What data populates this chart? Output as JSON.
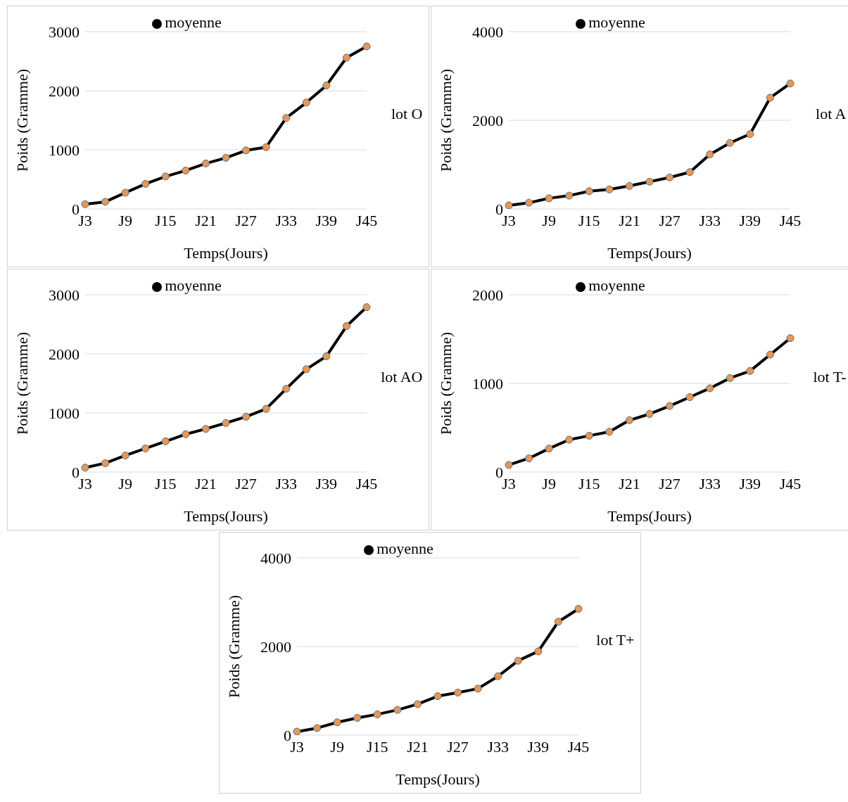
{
  "chart_data": [
    {
      "type": "line",
      "categories": [
        "J3",
        null,
        "J9",
        null,
        "J15",
        null,
        "J21",
        null,
        "J27",
        null,
        "J33",
        null,
        "J39",
        null,
        "J45"
      ],
      "series": [
        {
          "name": "moyenne",
          "color": "#000000",
          "values": [
            80,
            120,
            275,
            425,
            550,
            650,
            770,
            865,
            990,
            1045,
            1540,
            1800,
            2090,
            2560,
            2750
          ]
        }
      ],
      "ylim": [
        0,
        3000
      ],
      "yticks": [
        0,
        1000,
        2000,
        3000
      ],
      "xlabel": "Temps(Jours)",
      "ylabel": "Poids (Gramme)",
      "annotations": [
        "lot O"
      ],
      "grid": "y",
      "legend": "top",
      "marker": "circle"
    },
    {
      "type": "line",
      "categories": [
        "J3",
        null,
        "J9",
        null,
        "J15",
        null,
        "J21",
        null,
        "J27",
        null,
        "J33",
        null,
        "J39",
        null,
        "J45"
      ],
      "series": [
        {
          "name": "moyenne",
          "color": "#000000",
          "values": [
            80,
            140,
            240,
            300,
            400,
            440,
            520,
            615,
            710,
            830,
            1230,
            1490,
            1690,
            2510,
            2830
          ]
        }
      ],
      "ylim": [
        0,
        4000
      ],
      "yticks": [
        0,
        2000,
        4000
      ],
      "xlabel": "Temps(Jours)",
      "ylabel": "Poids (Gramme)",
      "annotations": [
        "lot A"
      ],
      "grid": "y",
      "legend": "top",
      "marker": "circle"
    },
    {
      "type": "line",
      "categories": [
        "J3",
        null,
        "J9",
        null,
        "J15",
        null,
        "J21",
        null,
        "J27",
        null,
        "J33",
        null,
        "J39",
        null,
        "J45"
      ],
      "series": [
        {
          "name": "moyenne",
          "color": "#000000",
          "values": [
            75,
            150,
            280,
            400,
            520,
            640,
            730,
            830,
            935,
            1070,
            1410,
            1740,
            1960,
            2470,
            2790
          ]
        }
      ],
      "ylim": [
        0,
        3000
      ],
      "yticks": [
        0,
        1000,
        2000,
        3000
      ],
      "xlabel": "Temps(Jours)",
      "ylabel": "Poids (Gramme)",
      "annotations": [
        "lot AO"
      ],
      "grid": "y",
      "legend": "top",
      "marker": "circle"
    },
    {
      "type": "line",
      "categories": [
        "J3",
        null,
        "J9",
        null,
        "J15",
        null,
        "J21",
        null,
        "J27",
        null,
        "J33",
        null,
        "J39",
        null,
        "J45"
      ],
      "series": [
        {
          "name": "moyenne",
          "color": "#000000",
          "values": [
            80,
            155,
            265,
            365,
            410,
            455,
            585,
            655,
            745,
            845,
            945,
            1060,
            1140,
            1325,
            1510
          ]
        }
      ],
      "ylim": [
        0,
        2000
      ],
      "yticks": [
        0,
        1000,
        2000
      ],
      "xlabel": "Temps(Jours)",
      "ylabel": "Poids (Gramme)",
      "annotations": [
        "lot T-"
      ],
      "grid": "y",
      "legend": "top",
      "marker": "circle"
    },
    {
      "type": "line",
      "categories": [
        "J3",
        null,
        "J9",
        null,
        "J15",
        null,
        "J21",
        null,
        "J27",
        null,
        "J33",
        null,
        "J39",
        null,
        "J45"
      ],
      "series": [
        {
          "name": "moyenne",
          "color": "#000000",
          "values": [
            80,
            160,
            290,
            390,
            470,
            570,
            700,
            880,
            960,
            1050,
            1330,
            1680,
            1890,
            2560,
            2850
          ]
        }
      ],
      "ylim": [
        0,
        4000
      ],
      "yticks": [
        0,
        2000,
        4000
      ],
      "xlabel": "Temps(Jours)",
      "ylabel": "Poids (Gramme)",
      "annotations": [
        "lot T+"
      ],
      "grid": "y",
      "legend": "top",
      "marker": "circle"
    }
  ]
}
